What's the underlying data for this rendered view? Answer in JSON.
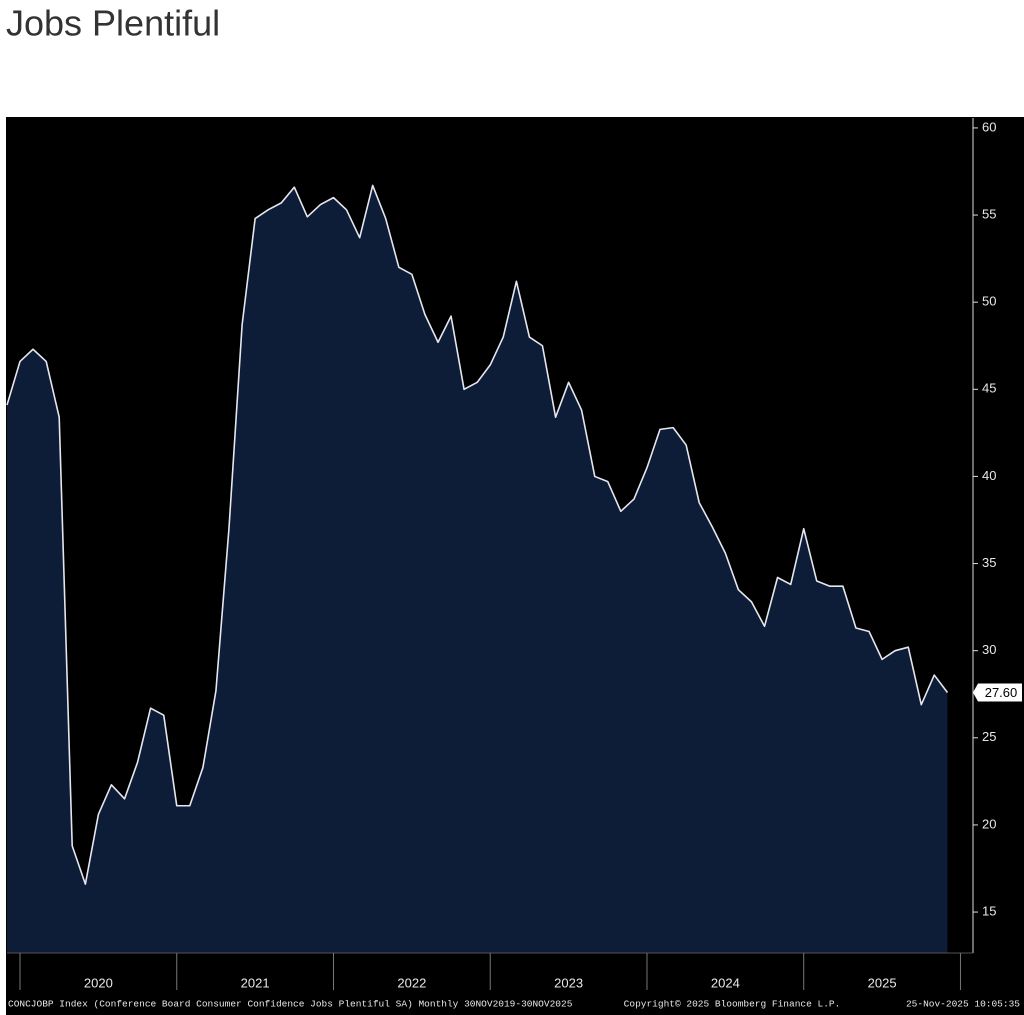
{
  "chart_data": {
    "type": "area",
    "title": "Jobs Plentiful",
    "footer_left": "CONCJOBP Index (Conference Board Consumer Confidence Jobs Plentiful SA) Monthly 30NOV2019-30NOV2025",
    "footer_center": "Copyright© 2025 Bloomberg Finance L.P.",
    "footer_right": "25-Nov-2025 10:05:35",
    "x": [
      2019.917,
      2020.0,
      2020.083,
      2020.167,
      2020.25,
      2020.333,
      2020.417,
      2020.5,
      2020.583,
      2020.667,
      2020.75,
      2020.833,
      2020.917,
      2021.0,
      2021.083,
      2021.167,
      2021.25,
      2021.333,
      2021.417,
      2021.5,
      2021.583,
      2021.667,
      2021.75,
      2021.833,
      2021.917,
      2022.0,
      2022.083,
      2022.167,
      2022.25,
      2022.333,
      2022.417,
      2022.5,
      2022.583,
      2022.667,
      2022.75,
      2022.833,
      2022.917,
      2023.0,
      2023.083,
      2023.167,
      2023.25,
      2023.333,
      2023.417,
      2023.5,
      2023.583,
      2023.667,
      2023.75,
      2023.833,
      2023.917,
      2024.0,
      2024.083,
      2024.167,
      2024.25,
      2024.333,
      2024.417,
      2024.5,
      2024.583,
      2024.667,
      2024.75,
      2024.833,
      2024.917,
      2025.0,
      2025.083,
      2025.167,
      2025.25,
      2025.333,
      2025.417,
      2025.5,
      2025.583,
      2025.667,
      2025.75,
      2025.833,
      2025.917
    ],
    "values": [
      44.1,
      46.6,
      47.3,
      46.6,
      43.4,
      18.8,
      16.6,
      20.6,
      22.3,
      21.5,
      23.6,
      26.7,
      26.3,
      21.1,
      21.1,
      23.3,
      27.7,
      37.0,
      48.7,
      54.8,
      55.3,
      55.7,
      56.6,
      54.9,
      55.6,
      56.0,
      55.3,
      53.7,
      56.7,
      54.8,
      52.0,
      51.6,
      49.3,
      47.7,
      49.2,
      45.0,
      45.4,
      46.4,
      48.0,
      51.2,
      48.0,
      47.5,
      43.4,
      45.4,
      43.8,
      40.0,
      39.7,
      38.0,
      38.7,
      40.5,
      42.7,
      42.8,
      41.8,
      38.5,
      37.1,
      35.6,
      33.5,
      32.8,
      31.4,
      34.2,
      33.8,
      37.0,
      34.0,
      33.7,
      33.7,
      31.3,
      31.1,
      29.5,
      30.0,
      30.2,
      26.9,
      28.6,
      27.6
    ],
    "value_labels": [
      null,
      null,
      null,
      null,
      null,
      null,
      null,
      null,
      null,
      null,
      null,
      null,
      null,
      null,
      null,
      null,
      null,
      null,
      null,
      null,
      null,
      null,
      null,
      null,
      null,
      null,
      null,
      null,
      null,
      null,
      null,
      null,
      null,
      null,
      null,
      null,
      null,
      null,
      null,
      null,
      null,
      null,
      null,
      null,
      null,
      null,
      null,
      null,
      null,
      null,
      null,
      null,
      null,
      null,
      null,
      null,
      null,
      null,
      null,
      null,
      null,
      null,
      null,
      null,
      null,
      null,
      null,
      null,
      null,
      null,
      null,
      null,
      "27.60"
    ],
    "fill_color": "#0d1d37",
    "line_color": "#e6e6ee",
    "xlim": [
      2019.917,
      2026.08
    ],
    "xticks": [
      {
        "value": 2020.5,
        "label": "2020"
      },
      {
        "value": 2021.5,
        "label": "2021"
      },
      {
        "value": 2022.5,
        "label": "2022"
      },
      {
        "value": 2023.5,
        "label": "2023"
      },
      {
        "value": 2024.5,
        "label": "2024"
      },
      {
        "value": 2025.5,
        "label": "2025"
      }
    ],
    "ylim": [
      12.65,
      60.57
    ],
    "yticks": [
      15,
      20,
      25,
      30,
      35,
      40,
      45,
      50,
      55,
      60
    ],
    "grid": false
  }
}
